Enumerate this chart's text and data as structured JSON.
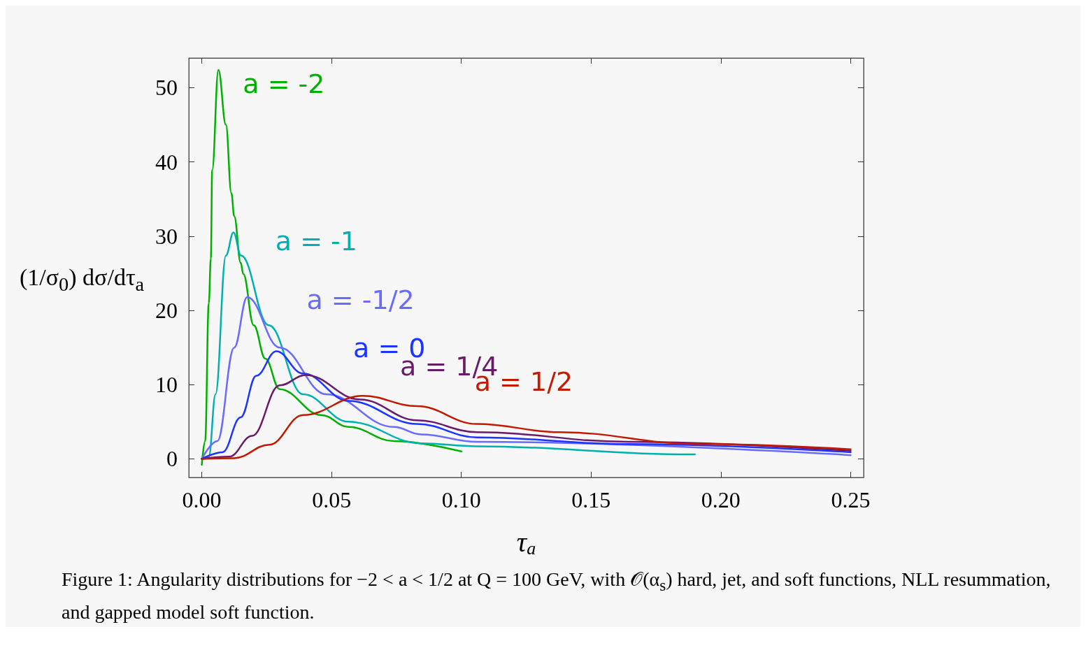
{
  "chart_data": {
    "type": "line",
    "xlabel": "τ$_{a}$",
    "ylabel": "(1/σ$_{0}$) dσ/dτ$_{a}$",
    "xlim": [
      -0.005,
      0.255
    ],
    "ylim": [
      -2.5,
      54
    ],
    "xticks": [
      {
        "value": 0,
        "label": "0.00"
      },
      {
        "value": 0.05,
        "label": "0.05"
      },
      {
        "value": 0.1,
        "label": "0.10"
      },
      {
        "value": 0.15,
        "label": "0.15"
      },
      {
        "value": 0.2,
        "label": "0.20"
      },
      {
        "value": 0.25,
        "label": "0.25"
      }
    ],
    "yticks": [
      0,
      10,
      20,
      30,
      40,
      50
    ],
    "grid": false,
    "legend": false,
    "marker": "none",
    "line_style": "solid",
    "annotations": [
      "Figure 1: Angularity distributions for −2 < a < 1/2 at Q = 100 GeV, with 𝒪(α$_{s}$) hard, jet, and soft functions, NLL resummation, and gapped model soft function."
    ],
    "series": [
      {
        "name": "a = -2",
        "color": "#00b000",
        "x": [
          0,
          0.0013,
          0.0027,
          0.0035,
          0.004,
          0.0064,
          0.0093,
          0.0114,
          0.0125,
          0.015,
          0.016,
          0.02,
          0.0245,
          0.03,
          0.046,
          0.0566,
          0.074,
          0.1
        ],
        "values": [
          -0.8,
          2.4,
          21,
          27,
          38.9,
          52.4,
          45,
          35.8,
          32.7,
          26.4,
          24.9,
          18,
          13.5,
          9.4,
          5.9,
          4.3,
          2.4,
          1.0
        ]
      },
      {
        "name": "a = -1",
        "color": "#00b0b0",
        "x": [
          0,
          0.0027,
          0.0053,
          0.0093,
          0.0122,
          0.0151,
          0.0258,
          0.039,
          0.0566,
          0.0845,
          0.106,
          0.188,
          0.19
        ],
        "values": [
          0,
          0.3,
          8.7,
          27.4,
          30.5,
          27.4,
          18,
          8.7,
          5.0,
          2.1,
          1.7,
          0.6,
          0.6
        ]
      },
      {
        "name": "a = -1/2",
        "color": "#6a6aff",
        "x": [
          0,
          0.006,
          0.0125,
          0.0175,
          0.03,
          0.048,
          0.074,
          0.0845,
          0.106,
          0.25
        ],
        "values": [
          0,
          2.4,
          15,
          21.8,
          15,
          8.7,
          4.3,
          3.3,
          2.3,
          0.5
        ]
      },
      {
        "name": "a = 0",
        "color": "#1a35ff",
        "x": [
          0,
          0.008,
          0.015,
          0.021,
          0.0287,
          0.039,
          0.0566,
          0.083,
          0.106,
          0.164,
          0.25
        ],
        "values": [
          0,
          0.9,
          5.6,
          11.2,
          14.5,
          11.5,
          7.8,
          4.7,
          2.9,
          2.0,
          0.9
        ]
      },
      {
        "name": "a = 1/4",
        "color": "#6b1a6b",
        "x": [
          0,
          0.0106,
          0.0194,
          0.03,
          0.04,
          0.061,
          0.083,
          0.106,
          0.164,
          0.25
        ],
        "values": [
          0,
          0.3,
          3.1,
          9.9,
          11.3,
          8.0,
          5.2,
          3.6,
          2.3,
          1.1
        ]
      },
      {
        "name": "a = 1/2",
        "color": "#c01a00",
        "x": [
          0,
          0.0125,
          0.026,
          0.039,
          0.062,
          0.083,
          0.106,
          0.138,
          0.191,
          0.25
        ],
        "values": [
          0,
          0.1,
          1.9,
          5.9,
          8.5,
          7.1,
          4.7,
          3.6,
          2.0,
          1.3
        ]
      }
    ]
  }
}
